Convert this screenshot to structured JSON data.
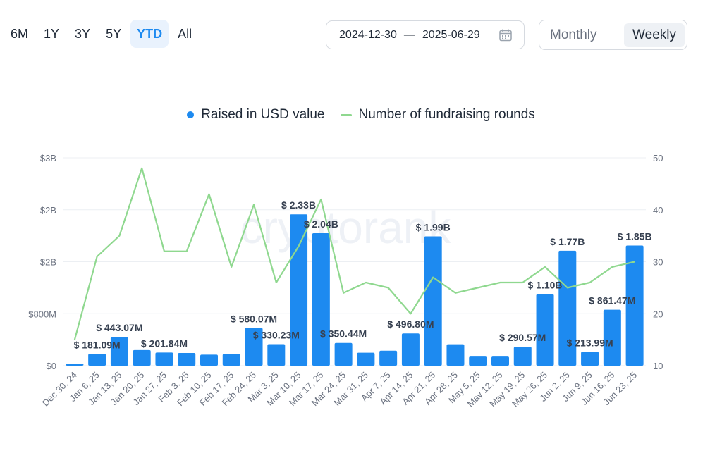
{
  "range_tabs": [
    "6M",
    "1Y",
    "3Y",
    "5Y",
    "YTD",
    "All"
  ],
  "range_active": "YTD",
  "date_range": {
    "start": "2024-12-30",
    "separator": "—",
    "end": "2025-06-29"
  },
  "period": {
    "monthly": "Monthly",
    "weekly": "Weekly",
    "active": "Weekly"
  },
  "legend": {
    "bars": "Raised in USD value",
    "line": "Number of fundraising rounds"
  },
  "watermark": "cryptorank",
  "colors": {
    "bar": "#1d8af0",
    "line": "#8fd88f",
    "grid": "#eceff3",
    "accent": "#1d8af0"
  },
  "chart_data": {
    "type": "bar",
    "categories": [
      "Dec 30, 24",
      "Jan 6, 25",
      "Jan 13, 25",
      "Jan 20, 25",
      "Jan 27, 25",
      "Feb 3, 25",
      "Feb 10, 25",
      "Feb 17, 25",
      "Feb 24, 25",
      "Mar 3, 25",
      "Mar 10, 25",
      "Mar 17, 25",
      "Mar 24, 25",
      "Mar 31, 25",
      "Apr 7, 25",
      "Apr 14, 25",
      "Apr 21, 25",
      "Apr 28, 25",
      "May 5, 25",
      "May 12, 25",
      "May 19, 25",
      "May 26, 25",
      "Jun 2, 25",
      "Jun 9, 25",
      "Jun 16, 25",
      "Jun 23, 25"
    ],
    "series": [
      {
        "name": "Raised in USD value",
        "type": "bar",
        "axis": "left",
        "values": [
          30000000,
          181090000,
          443070000,
          240000000,
          201840000,
          195000000,
          170000000,
          180000000,
          580070000,
          330230000,
          2330000000,
          2040000000,
          350440000,
          200000000,
          230000000,
          496800000,
          1990000000,
          330000000,
          140000000,
          140000000,
          290570000,
          1100000000,
          1770000000,
          213990000,
          861470000,
          1850000000
        ],
        "labels": [
          "",
          "$ 181.09M",
          "$ 443.07M",
          "",
          "$ 201.84M",
          "",
          "",
          "",
          "$ 580.07M",
          "$ 330.23M",
          "$ 2.33B",
          "$ 2.04B",
          "$ 350.44M",
          "",
          "",
          "$ 496.80M",
          "$ 1.99B",
          "",
          "",
          "",
          "$ 290.57M",
          "$ 1.10B",
          "$ 1.77B",
          "$ 213.99M",
          "$ 861.47M",
          "$ 1.85B"
        ]
      },
      {
        "name": "Number of fundraising rounds",
        "type": "line",
        "axis": "right",
        "values": [
          15,
          31,
          35,
          48,
          32,
          32,
          43,
          29,
          41,
          26,
          33,
          42,
          24,
          26,
          25,
          20,
          27,
          24,
          25,
          26,
          26,
          29,
          25,
          26,
          29,
          30
        ]
      }
    ],
    "yleft": {
      "ticks": [
        "$0",
        "$800M",
        "$2B",
        "$2B",
        "$3B"
      ],
      "lim": [
        0,
        3200000000
      ]
    },
    "yright": {
      "ticks": [
        "10",
        "20",
        "30",
        "40",
        "50"
      ],
      "lim": [
        10,
        50
      ]
    },
    "grid": true,
    "legend_position": "top-center"
  }
}
